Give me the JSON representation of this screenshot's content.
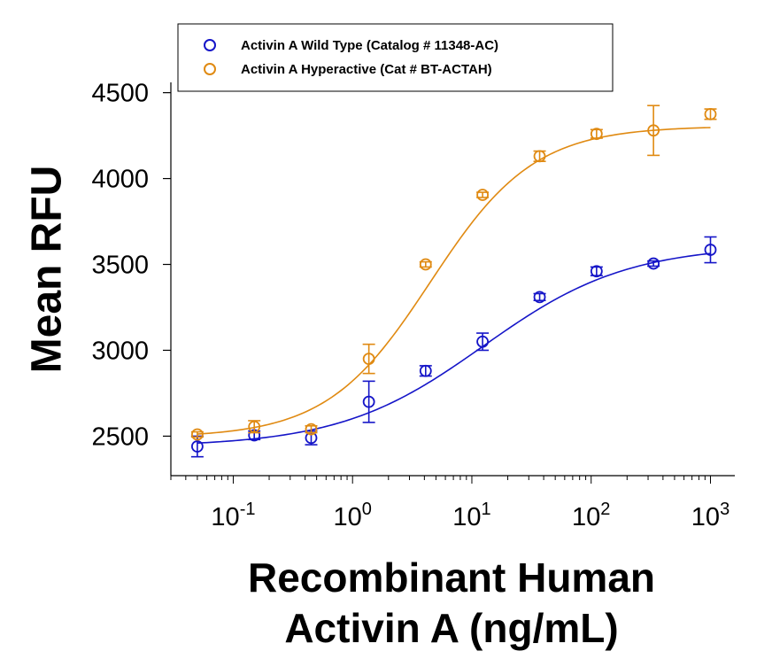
{
  "chart_data": {
    "type": "scatter",
    "x_scale": "log",
    "xlabel": [
      "Recombinant Human",
      "Activin A (ng/mL)"
    ],
    "ylabel": "Mean RFU",
    "xlim": [
      0.03,
      1600
    ],
    "ylim": [
      2270,
      4560
    ],
    "y_ticks": [
      "2500",
      "3000",
      "3500",
      "4000",
      "4500"
    ],
    "y_tick_values": [
      2500,
      3000,
      3500,
      4000,
      4500
    ],
    "x_ticks": [
      {
        "base": "10",
        "exp": "-1",
        "value": 0.1
      },
      {
        "base": "10",
        "exp": "0",
        "value": 1
      },
      {
        "base": "10",
        "exp": "1",
        "value": 10
      },
      {
        "base": "10",
        "exp": "2",
        "value": 100
      },
      {
        "base": "10",
        "exp": "3",
        "value": 1000
      }
    ],
    "legend_position": "top-left",
    "series": [
      {
        "name": "Activin A Wild Type (Catalog # 11348-AC)",
        "color": "#1515c8",
        "x": [
          0.05,
          0.15,
          0.45,
          1.37,
          4.1,
          12.3,
          37,
          111,
          333,
          1000
        ],
        "y": [
          2440,
          2505,
          2490,
          2700,
          2880,
          3050,
          3310,
          3460,
          3505,
          3585
        ],
        "err": [
          60,
          25,
          40,
          120,
          30,
          50,
          20,
          25,
          15,
          75
        ],
        "fit": {
          "bottom": 2438,
          "top": 3612,
          "ec50": 12.5,
          "hill": 0.72
        }
      },
      {
        "name": "Activin A Hyperactive (Cat # BT-ACTAH)",
        "color": "#e08a12",
        "x": [
          0.05,
          0.15,
          0.45,
          1.37,
          4.1,
          12.3,
          37,
          111,
          333,
          1000
        ],
        "y": [
          2510,
          2555,
          2540,
          2950,
          3500,
          3905,
          4130,
          4260,
          4280,
          4375
        ],
        "err": [
          15,
          35,
          20,
          85,
          15,
          15,
          30,
          25,
          145,
          30
        ],
        "fit": {
          "bottom": 2492,
          "top": 4305,
          "ec50": 4.5,
          "hill": 1.0
        }
      }
    ]
  }
}
